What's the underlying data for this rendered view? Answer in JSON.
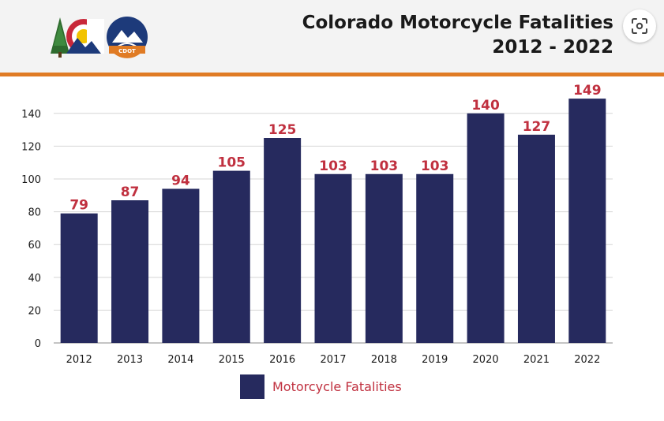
{
  "header": {
    "title_line1": "Colorado Motorcycle Fatalities",
    "title_line2": "2012 - 2022",
    "logo_text": "CDOT"
  },
  "colors": {
    "bar": "#262a5e",
    "data_label": "#c0303f",
    "accent_rule": "#e07b24",
    "header_bg": "#f3f3f3"
  },
  "icons": {
    "lens_button": "google-lens-icon"
  },
  "chart_data": {
    "type": "bar",
    "categories": [
      "2012",
      "2013",
      "2014",
      "2015",
      "2016",
      "2017",
      "2018",
      "2019",
      "2020",
      "2021",
      "2022"
    ],
    "series": [
      {
        "name": "Motorcycle Fatalities",
        "values": [
          79,
          87,
          94,
          105,
          125,
          103,
          103,
          103,
          140,
          127,
          149
        ]
      }
    ],
    "ylim": [
      0,
      150
    ],
    "yticks": [
      0,
      20,
      40,
      60,
      80,
      100,
      120,
      140
    ],
    "grid": true,
    "legend": "bottom",
    "data_labels": true
  }
}
